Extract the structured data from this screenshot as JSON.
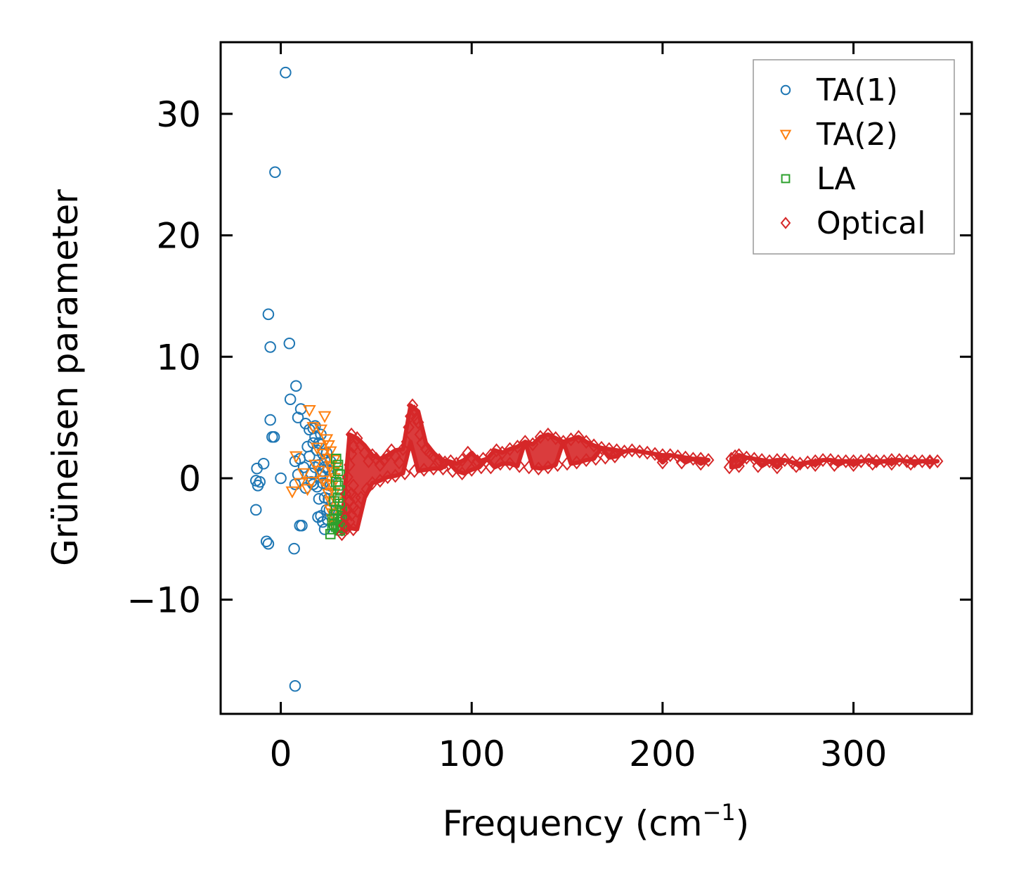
{
  "chart_data": {
    "type": "scatter",
    "xlabel": "Frequency (cm",
    "xlabel_sup": "−1",
    "xlabel_end": ")",
    "ylabel": "Grüneisen parameter",
    "xlim": [
      -31.5,
      362
    ],
    "ylim": [
      -19.4,
      35.9
    ],
    "xticks": [
      0,
      100,
      200,
      300
    ],
    "xtick_labels": [
      "0",
      "100",
      "200",
      "300"
    ],
    "yticks": [
      -10,
      0,
      10,
      20,
      30
    ],
    "ytick_labels": [
      "−10",
      "0",
      "10",
      "20",
      "30"
    ],
    "legend_position": "top-right",
    "grid": false,
    "series": [
      {
        "name": "TA(1)",
        "marker": "circle",
        "color": "#1f77b4",
        "points": [
          [
            2.5,
            33.4
          ],
          [
            -3,
            25.2
          ],
          [
            -6.5,
            13.5
          ],
          [
            -5.5,
            10.8
          ],
          [
            4.5,
            11.1
          ],
          [
            8,
            7.6
          ],
          [
            5,
            6.5
          ],
          [
            10.5,
            5.7
          ],
          [
            -5.5,
            4.8
          ],
          [
            9,
            5.0
          ],
          [
            -4.5,
            3.4
          ],
          [
            -3.5,
            3.4
          ],
          [
            13,
            4.5
          ],
          [
            15,
            4.0
          ],
          [
            17,
            4.1
          ],
          [
            18,
            4.3
          ],
          [
            -9,
            1.2
          ],
          [
            -12.5,
            0.8
          ],
          [
            -13,
            -0.2
          ],
          [
            -11,
            -0.3
          ],
          [
            -12,
            -0.6
          ],
          [
            -13,
            -2.6
          ],
          [
            0,
            0
          ],
          [
            7.5,
            1.4
          ],
          [
            7.5,
            -0.5
          ],
          [
            9,
            0.3
          ],
          [
            10,
            1.6
          ],
          [
            12,
            0.9
          ],
          [
            13,
            -0.8
          ],
          [
            14,
            2.6
          ],
          [
            15,
            1.8
          ],
          [
            16,
            0.4
          ],
          [
            17,
            2.9
          ],
          [
            19,
            2.3
          ],
          [
            20,
            1.1
          ],
          [
            21,
            0.3
          ],
          [
            22,
            -0.4
          ],
          [
            23,
            -1.6
          ],
          [
            24,
            -2.6
          ],
          [
            21,
            3.6
          ],
          [
            22,
            2.0
          ],
          [
            23,
            0.9
          ],
          [
            24,
            -0.5
          ],
          [
            25,
            -1.7
          ],
          [
            19,
            -0.7
          ],
          [
            20,
            -1.7
          ],
          [
            21,
            -3.1
          ],
          [
            22,
            -3.6
          ],
          [
            23,
            -4.2
          ],
          [
            26,
            1.4
          ],
          [
            26,
            -0.6
          ],
          [
            25,
            0.7
          ],
          [
            24,
            2.1
          ],
          [
            23,
            1.5
          ],
          [
            22,
            0.6
          ],
          [
            18,
            0.9
          ],
          [
            17,
            -0.5
          ],
          [
            16,
            -0.3
          ],
          [
            20,
            2.9
          ],
          [
            18,
            3.4
          ],
          [
            -7.5,
            -5.2
          ],
          [
            -6.5,
            -5.4
          ],
          [
            10,
            -3.9
          ],
          [
            11,
            -3.9
          ],
          [
            7,
            -5.8
          ],
          [
            7.5,
            -17.1
          ],
          [
            19.5,
            -3.2
          ],
          [
            25.5,
            -2.6
          ],
          [
            24.5,
            -3.4
          ],
          [
            26,
            0.2
          ]
        ]
      },
      {
        "name": "TA(2)",
        "marker": "triangle-down",
        "color": "#ff7f0e",
        "points": [
          [
            15,
            5.6
          ],
          [
            23,
            5.1
          ],
          [
            17,
            4.2
          ],
          [
            21,
            4.0
          ],
          [
            24,
            3.2
          ],
          [
            19,
            2.5
          ],
          [
            22,
            2.0
          ],
          [
            25,
            1.6
          ],
          [
            26,
            1.0
          ],
          [
            27,
            0.5
          ],
          [
            28,
            0
          ],
          [
            27,
            -0.6
          ],
          [
            28,
            -1.2
          ],
          [
            29,
            -1.9
          ],
          [
            26,
            -2.6
          ],
          [
            27,
            -3.4
          ],
          [
            28,
            -3.9
          ],
          [
            25,
            2.7
          ],
          [
            26,
            2.2
          ],
          [
            28,
            1.5
          ],
          [
            29,
            0.9
          ],
          [
            24,
            -0.5
          ],
          [
            25,
            -1.3
          ],
          [
            26,
            -1.9
          ],
          [
            27,
            -2.9
          ],
          [
            6,
            -1.1
          ],
          [
            8,
            1.8
          ],
          [
            10,
            -0.4
          ],
          [
            12,
            0.4
          ],
          [
            14,
            -0.9
          ],
          [
            16,
            -0.3
          ],
          [
            18,
            1.1
          ],
          [
            20,
            0.6
          ],
          [
            22,
            -0.2
          ],
          [
            29,
            -3.0
          ]
        ]
      },
      {
        "name": "LA",
        "marker": "square",
        "color": "#2ca02c",
        "points": [
          [
            26,
            -4.6
          ],
          [
            27,
            -4.2
          ],
          [
            28,
            -3.8
          ],
          [
            29,
            -4.0
          ],
          [
            30,
            -3.3
          ],
          [
            31,
            -3.6
          ],
          [
            32,
            -3.1
          ],
          [
            30,
            -4.1
          ],
          [
            31,
            -4.3
          ],
          [
            29,
            -2.6
          ],
          [
            30,
            -1.6
          ],
          [
            30,
            -0.6
          ],
          [
            31,
            0.3
          ],
          [
            30,
            1.1
          ],
          [
            29,
            1.6
          ],
          [
            31,
            -2.1
          ],
          [
            32,
            -2.7
          ],
          [
            28,
            -3.0
          ],
          [
            27,
            -3.4
          ],
          [
            32,
            -3.9
          ],
          [
            31,
            -1.0
          ],
          [
            30,
            0.6
          ],
          [
            29,
            -0.3
          ],
          [
            28,
            -1.9
          ]
        ]
      },
      {
        "name": "Optical",
        "marker": "diamond",
        "color": "#d62728",
        "points": [
          [
            32,
            -4.6
          ],
          [
            33,
            -3.9
          ],
          [
            34,
            -3.2
          ],
          [
            35,
            -2.6
          ],
          [
            36,
            -1.9
          ],
          [
            37,
            -1.3
          ],
          [
            38,
            -0.6
          ],
          [
            35,
            -4.1
          ],
          [
            36,
            -3.6
          ],
          [
            37,
            -3.0
          ],
          [
            38,
            -2.4
          ],
          [
            39,
            -1.6
          ],
          [
            34,
            -1.3
          ],
          [
            35,
            0.1
          ],
          [
            36,
            1.1
          ],
          [
            37,
            2.0
          ],
          [
            38,
            2.6
          ],
          [
            37,
            3.6
          ],
          [
            40,
            3.3
          ],
          [
            42,
            2.7
          ],
          [
            44,
            2.1
          ],
          [
            46,
            1.4
          ],
          [
            48,
            1.9
          ],
          [
            50,
            1.6
          ],
          [
            52,
            1.1
          ],
          [
            54,
            1.5
          ],
          [
            56,
            1.9
          ],
          [
            58,
            2.3
          ],
          [
            60,
            1.8
          ],
          [
            62,
            1.3
          ],
          [
            64,
            2.4
          ],
          [
            66,
            3.0
          ],
          [
            67,
            4.2
          ],
          [
            68,
            5.1
          ],
          [
            69,
            6.0
          ],
          [
            70,
            5.5
          ],
          [
            71,
            4.9
          ],
          [
            72,
            4.6
          ],
          [
            73,
            3.6
          ],
          [
            74,
            2.9
          ],
          [
            76,
            2.4
          ],
          [
            78,
            2.1
          ],
          [
            80,
            1.8
          ],
          [
            83,
            1.5
          ],
          [
            86,
            1.3
          ],
          [
            89,
            1.4
          ],
          [
            92,
            1.2
          ],
          [
            95,
            1.5
          ],
          [
            98,
            2.1
          ],
          [
            100,
            1.7
          ],
          [
            103,
            1.4
          ],
          [
            106,
            1.6
          ],
          [
            110,
            1.9
          ],
          [
            113,
            2.3
          ],
          [
            116,
            2.1
          ],
          [
            120,
            2.4
          ],
          [
            124,
            2.6
          ],
          [
            128,
            3.0
          ],
          [
            132,
            2.8
          ],
          [
            136,
            3.4
          ],
          [
            140,
            3.6
          ],
          [
            144,
            3.3
          ],
          [
            148,
            3.0
          ],
          [
            152,
            3.2
          ],
          [
            156,
            3.4
          ],
          [
            160,
            3.0
          ],
          [
            164,
            2.7
          ],
          [
            168,
            2.5
          ],
          [
            172,
            2.4
          ],
          [
            176,
            2.3
          ],
          [
            180,
            2.2
          ],
          [
            184,
            2.3
          ],
          [
            188,
            2.2
          ],
          [
            192,
            2.1
          ],
          [
            196,
            2.0
          ],
          [
            200,
            1.9
          ],
          [
            204,
            1.9
          ],
          [
            208,
            1.8
          ],
          [
            212,
            1.7
          ],
          [
            216,
            1.6
          ],
          [
            220,
            1.6
          ],
          [
            224,
            1.5
          ],
          [
            236,
            1.6
          ],
          [
            238,
            1.8
          ],
          [
            240,
            1.9
          ],
          [
            244,
            1.7
          ],
          [
            248,
            1.6
          ],
          [
            252,
            1.5
          ],
          [
            256,
            1.4
          ],
          [
            260,
            1.5
          ],
          [
            264,
            1.5
          ],
          [
            268,
            1.3
          ],
          [
            272,
            1.2
          ],
          [
            276,
            1.3
          ],
          [
            280,
            1.4
          ],
          [
            284,
            1.5
          ],
          [
            288,
            1.5
          ],
          [
            292,
            1.4
          ],
          [
            296,
            1.4
          ],
          [
            300,
            1.4
          ],
          [
            304,
            1.4
          ],
          [
            308,
            1.5
          ],
          [
            312,
            1.4
          ],
          [
            316,
            1.4
          ],
          [
            320,
            1.5
          ],
          [
            324,
            1.5
          ],
          [
            328,
            1.4
          ],
          [
            332,
            1.4
          ],
          [
            336,
            1.4
          ],
          [
            340,
            1.4
          ],
          [
            344,
            1.4
          ],
          [
            38,
            -4.2
          ],
          [
            40,
            -2.7
          ],
          [
            42,
            -1.6
          ],
          [
            45,
            -0.9
          ],
          [
            48,
            -0.4
          ],
          [
            52,
            -0.2
          ],
          [
            56,
            0.1
          ],
          [
            60,
            0.2
          ],
          [
            65,
            0.4
          ],
          [
            70,
            0.6
          ],
          [
            75,
            0.7
          ],
          [
            80,
            0.8
          ],
          [
            85,
            0.8
          ],
          [
            90,
            0.6
          ],
          [
            95,
            0.4
          ],
          [
            100,
            0.7
          ],
          [
            105,
            0.9
          ],
          [
            110,
            0.9
          ],
          [
            115,
            1.2
          ],
          [
            120,
            1.2
          ],
          [
            125,
            1.0
          ],
          [
            130,
            0.9
          ],
          [
            135,
            0.8
          ],
          [
            140,
            0.9
          ],
          [
            145,
            1.1
          ],
          [
            150,
            1.2
          ],
          [
            155,
            1.3
          ],
          [
            160,
            1.5
          ],
          [
            165,
            1.6
          ],
          [
            170,
            1.7
          ],
          [
            175,
            1.8
          ],
          [
            200,
            1.3
          ],
          [
            210,
            1.3
          ],
          [
            220,
            1.2
          ],
          [
            235,
            0.9
          ],
          [
            240,
            1.0
          ],
          [
            250,
            1.0
          ],
          [
            260,
            0.9
          ],
          [
            270,
            1.0
          ],
          [
            280,
            1.1
          ],
          [
            290,
            1.1
          ],
          [
            300,
            1.1
          ],
          [
            310,
            1.2
          ],
          [
            320,
            1.2
          ],
          [
            330,
            1.2
          ],
          [
            340,
            1.3
          ]
        ]
      }
    ]
  }
}
